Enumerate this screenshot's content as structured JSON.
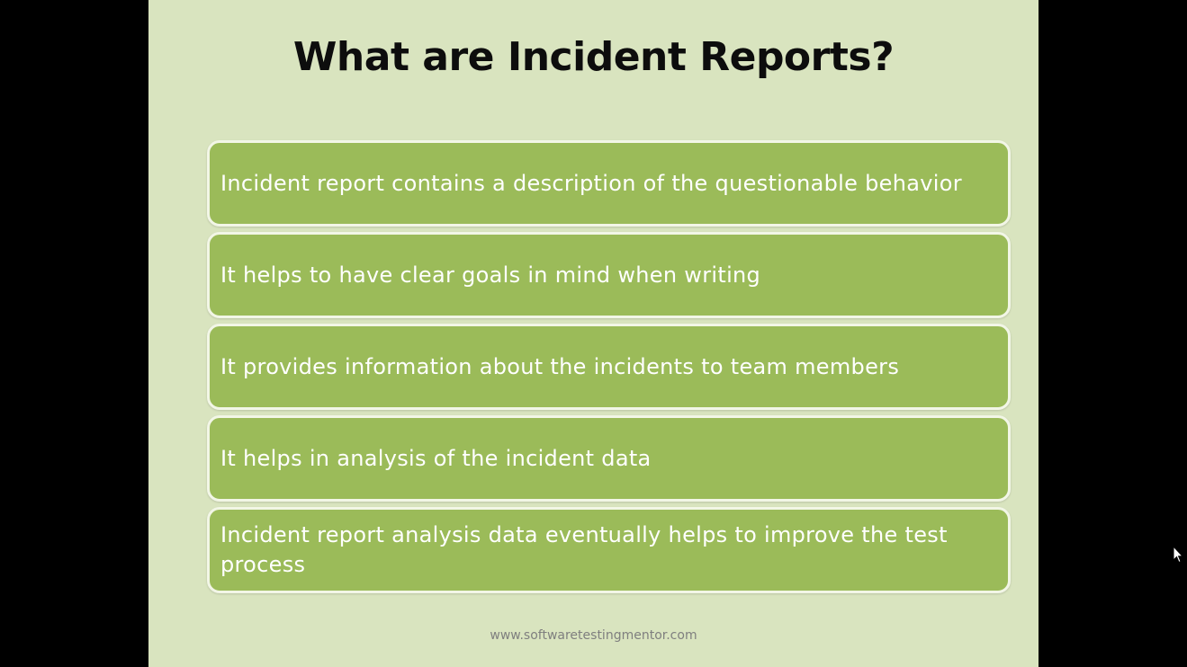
{
  "slide": {
    "title": "What are Incident Reports?",
    "bullets": [
      "Incident report contains a description of the questionable behavior",
      "It helps to have clear goals in mind when writing",
      "It provides information about the incidents to team members",
      "It helps in analysis of the incident data",
      "Incident report analysis data eventually helps to improve the test process"
    ],
    "footer_url": "www.softwaretestingmentor.com"
  },
  "colors": {
    "slide_background": "#d9e4bf",
    "box_fill": "#9bbb59",
    "box_border": "#f2f6e6",
    "page_background": "#000000"
  },
  "icons": {
    "cursor": "mouse-pointer-icon"
  }
}
